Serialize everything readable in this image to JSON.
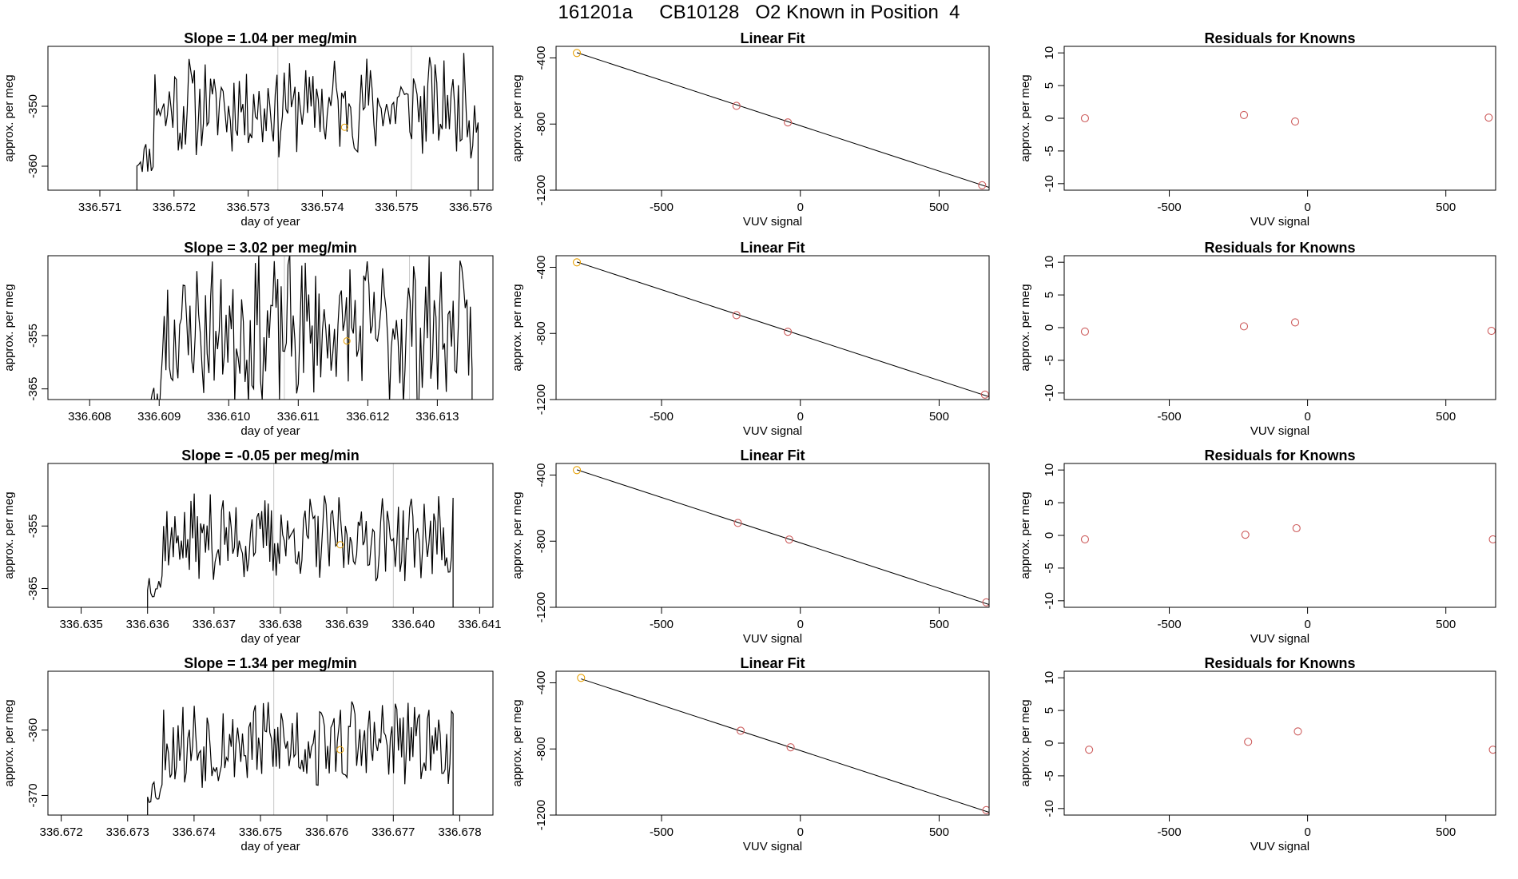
{
  "title": "161201a     CB10128   O2 Known in Position  4",
  "colors": {
    "line": "#000000",
    "grid": "#c8c8c8",
    "known": "#e69f00",
    "residual": "#cd5c5c"
  },
  "chart_data": [
    {
      "type": "line",
      "row": 1,
      "panel": "timeseries",
      "title": "Slope =  1.04  per meg/min",
      "xlabel": "day of year",
      "ylabel": "approx. per meg",
      "xlim": [
        336.5703,
        336.5763
      ],
      "ylim": [
        -364,
        -340
      ],
      "xticks": [
        "336.571",
        "336.572",
        "336.573",
        "336.574",
        "336.575",
        "336.576"
      ],
      "yticks": [
        "-350",
        "-360"
      ],
      "series_range": [
        336.5715,
        336.5761
      ],
      "base": -350,
      "amp": 6,
      "seed": 11,
      "vlines": [
        336.5734,
        336.5752
      ],
      "marker": {
        "x": 336.5743,
        "y": -353.5
      }
    },
    {
      "type": "scatter",
      "row": 1,
      "panel": "fit",
      "title": "Linear Fit",
      "xlabel": "VUV signal",
      "ylabel": "approx. per meg",
      "xlim": [
        -880,
        680
      ],
      "ylim": [
        -1200,
        -330
      ],
      "xticks": [
        "-500",
        "0",
        "500"
      ],
      "yticks": [
        "-400",
        "-800",
        "-1200"
      ],
      "points": [
        [
          -805,
          -370
        ],
        [
          -230,
          -690
        ],
        [
          -45,
          -790
        ],
        [
          655,
          -1170
        ]
      ],
      "known_index": 0,
      "fit_range": [
        -805,
        680
      ],
      "fit_slope": -0.549,
      "fit_intercept": -810
    },
    {
      "type": "scatter",
      "row": 1,
      "panel": "residuals",
      "title": "Residuals for Knowns",
      "xlabel": "VUV signal",
      "ylabel": "approx. per meg",
      "xlim": [
        -880,
        680
      ],
      "ylim": [
        -11,
        11
      ],
      "xticks": [
        "-500",
        "0",
        "500"
      ],
      "yticks": [
        "10",
        "5",
        "0",
        "-5",
        "-10"
      ],
      "points": [
        [
          -805,
          0
        ],
        [
          -230,
          0.5
        ],
        [
          -45,
          -0.5
        ],
        [
          655,
          0.1
        ]
      ]
    },
    {
      "type": "line",
      "row": 2,
      "panel": "timeseries",
      "title": "Slope =  3.02  per meg/min",
      "xlabel": "day of year",
      "ylabel": "approx. per meg",
      "xlim": [
        336.6074,
        336.6138
      ],
      "ylim": [
        -367,
        -340
      ],
      "xticks": [
        "336.608",
        "336.609",
        "336.610",
        "336.611",
        "336.612",
        "336.613"
      ],
      "yticks": [
        "-355",
        "-365"
      ],
      "series_range": [
        336.6088,
        336.6135
      ],
      "base": -354,
      "amp": 10,
      "seed": 23,
      "vlines": [
        336.6108,
        336.6126
      ],
      "marker": {
        "x": 336.6117,
        "y": -356
      }
    },
    {
      "type": "scatter",
      "row": 2,
      "panel": "fit",
      "title": "Linear Fit",
      "xlabel": "VUV signal",
      "ylabel": "approx. per meg",
      "xlim": [
        -880,
        680
      ],
      "ylim": [
        -1200,
        -330
      ],
      "xticks": [
        "-500",
        "0",
        "500"
      ],
      "yticks": [
        "-400",
        "-800",
        "-1200"
      ],
      "points": [
        [
          -805,
          -370
        ],
        [
          -230,
          -690
        ],
        [
          -45,
          -790
        ],
        [
          665,
          -1170
        ]
      ],
      "known_index": 0,
      "fit_range": [
        -805,
        680
      ],
      "fit_slope": -0.549,
      "fit_intercept": -810
    },
    {
      "type": "scatter",
      "row": 2,
      "panel": "residuals",
      "title": "Residuals for Knowns",
      "xlabel": "VUV signal",
      "ylabel": "approx. per meg",
      "xlim": [
        -880,
        680
      ],
      "ylim": [
        -11,
        11
      ],
      "xticks": [
        "-500",
        "0",
        "500"
      ],
      "yticks": [
        "10",
        "5",
        "0",
        "-5",
        "-10"
      ],
      "points": [
        [
          -805,
          -0.6
        ],
        [
          -230,
          0.2
        ],
        [
          -45,
          0.8
        ],
        [
          665,
          -0.5
        ]
      ]
    },
    {
      "type": "line",
      "row": 3,
      "panel": "timeseries",
      "title": "Slope =  -0.05  per meg/min",
      "xlabel": "day of year",
      "ylabel": "approx. per meg",
      "xlim": [
        336.6345,
        336.6412
      ],
      "ylim": [
        -368,
        -345
      ],
      "xticks": [
        "336.635",
        "336.636",
        "336.637",
        "336.638",
        "336.639",
        "336.640",
        "336.641"
      ],
      "yticks": [
        "-355",
        "-365"
      ],
      "series_range": [
        336.636,
        336.6406
      ],
      "base": -357,
      "amp": 5,
      "seed": 37,
      "vlines": [
        336.6379,
        336.6397
      ],
      "marker": {
        "x": 336.6389,
        "y": -358
      }
    },
    {
      "type": "scatter",
      "row": 3,
      "panel": "fit",
      "title": "Linear Fit",
      "xlabel": "VUV signal",
      "ylabel": "approx. per meg",
      "xlim": [
        -880,
        680
      ],
      "ylim": [
        -1200,
        -330
      ],
      "xticks": [
        "-500",
        "0",
        "500"
      ],
      "yticks": [
        "-400",
        "-800",
        "-1200"
      ],
      "points": [
        [
          -805,
          -370
        ],
        [
          -225,
          -690
        ],
        [
          -40,
          -790
        ],
        [
          670,
          -1170
        ]
      ],
      "known_index": 0,
      "fit_range": [
        -805,
        680
      ],
      "fit_slope": -0.549,
      "fit_intercept": -810
    },
    {
      "type": "scatter",
      "row": 3,
      "panel": "residuals",
      "title": "Residuals for Knowns",
      "xlabel": "VUV signal",
      "ylabel": "approx. per meg",
      "xlim": [
        -880,
        680
      ],
      "ylim": [
        -11,
        11
      ],
      "xticks": [
        "-500",
        "0",
        "500"
      ],
      "yticks": [
        "10",
        "5",
        "0",
        "-5",
        "-10"
      ],
      "points": [
        [
          -805,
          -0.6
        ],
        [
          -225,
          0.1
        ],
        [
          -40,
          1.1
        ],
        [
          670,
          -0.6
        ]
      ]
    },
    {
      "type": "line",
      "row": 4,
      "panel": "timeseries",
      "title": "Slope =  1.34  per meg/min",
      "xlabel": "day of year",
      "ylabel": "approx. per meg",
      "xlim": [
        336.6718,
        336.6785
      ],
      "ylim": [
        -373,
        -351
      ],
      "xticks": [
        "336.672",
        "336.673",
        "336.674",
        "336.675",
        "336.676",
        "336.677",
        "336.678"
      ],
      "yticks": [
        "-360",
        "-370"
      ],
      "series_range": [
        336.6733,
        336.6779
      ],
      "base": -362,
      "amp": 5,
      "seed": 53,
      "vlines": [
        336.6752,
        336.677
      ],
      "marker": {
        "x": 336.6762,
        "y": -363
      }
    },
    {
      "type": "scatter",
      "row": 4,
      "panel": "fit",
      "title": "Linear Fit",
      "xlabel": "VUV signal",
      "ylabel": "approx. per meg",
      "xlim": [
        -880,
        680
      ],
      "ylim": [
        -1200,
        -330
      ],
      "xticks": [
        "-500",
        "0",
        "500"
      ],
      "yticks": [
        "-400",
        "-800",
        "-1200"
      ],
      "points": [
        [
          -790,
          -370
        ],
        [
          -215,
          -690
        ],
        [
          -35,
          -790
        ],
        [
          670,
          -1170
        ]
      ],
      "known_index": 0,
      "fit_range": [
        -790,
        680
      ],
      "fit_slope": -0.549,
      "fit_intercept": -810
    },
    {
      "type": "scatter",
      "row": 4,
      "panel": "residuals",
      "title": "Residuals for Knowns",
      "xlabel": "VUV signal",
      "ylabel": "approx. per meg",
      "xlim": [
        -880,
        680
      ],
      "ylim": [
        -11,
        11
      ],
      "xticks": [
        "-500",
        "0",
        "500"
      ],
      "yticks": [
        "10",
        "5",
        "0",
        "-5",
        "-10"
      ],
      "points": [
        [
          -790,
          -1.0
        ],
        [
          -215,
          0.2
        ],
        [
          -35,
          1.8
        ],
        [
          670,
          -1.0
        ]
      ]
    }
  ]
}
